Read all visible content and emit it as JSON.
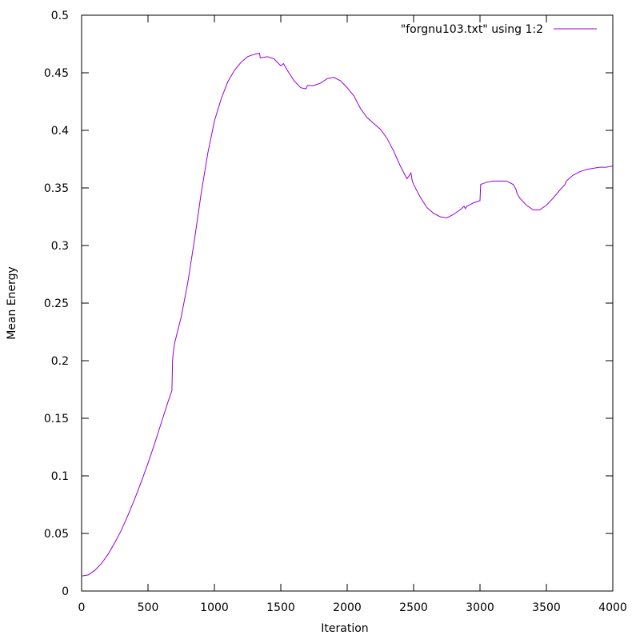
{
  "chart_data": {
    "type": "line",
    "title": "",
    "xlabel": "Iteration",
    "ylabel": "Mean Energy",
    "xlim": [
      0,
      4000
    ],
    "ylim": [
      0,
      0.5
    ],
    "x_ticks": [
      0,
      500,
      1000,
      1500,
      2000,
      2500,
      3000,
      3500,
      4000
    ],
    "x_tick_labels": [
      "0",
      "500",
      "1000",
      "1500",
      "2000",
      "2500",
      "3000",
      "3500",
      "4000"
    ],
    "y_ticks": [
      0,
      0.05,
      0.1,
      0.15,
      0.2,
      0.25,
      0.3,
      0.35,
      0.4,
      0.45,
      0.5
    ],
    "y_tick_labels": [
      "0",
      "0.05",
      "0.1",
      "0.15",
      "0.2",
      "0.25",
      "0.3",
      "0.35",
      "0.4",
      "0.45",
      "0.5"
    ],
    "grid": false,
    "legend_position": "top-right",
    "series": [
      {
        "name": "\"forgnu103.txt\" using 1:2",
        "color": "#9400d3",
        "x": [
          0,
          50,
          100,
          150,
          200,
          250,
          300,
          350,
          400,
          450,
          500,
          550,
          600,
          650,
          680,
          685,
          690,
          700,
          750,
          800,
          850,
          900,
          950,
          1000,
          1050,
          1100,
          1150,
          1200,
          1250,
          1300,
          1340,
          1345,
          1350,
          1400,
          1450,
          1500,
          1520,
          1530,
          1550,
          1600,
          1650,
          1690,
          1700,
          1750,
          1800,
          1850,
          1900,
          1950,
          2000,
          2050,
          2100,
          2150,
          2200,
          2250,
          2300,
          2350,
          2400,
          2450,
          2480,
          2490,
          2500,
          2550,
          2600,
          2650,
          2700,
          2750,
          2800,
          2850,
          2880,
          2890,
          2900,
          2950,
          3000,
          3005,
          3050,
          3100,
          3150,
          3200,
          3250,
          3270,
          3280,
          3300,
          3350,
          3400,
          3450,
          3500,
          3550,
          3600,
          3640,
          3650,
          3700,
          3750,
          3800,
          3850,
          3900,
          3950,
          4000
        ],
        "y": [
          0.013,
          0.014,
          0.018,
          0.024,
          0.032,
          0.042,
          0.053,
          0.066,
          0.08,
          0.095,
          0.111,
          0.128,
          0.146,
          0.164,
          0.174,
          0.2,
          0.207,
          0.215,
          0.238,
          0.268,
          0.305,
          0.345,
          0.38,
          0.408,
          0.427,
          0.442,
          0.452,
          0.459,
          0.464,
          0.466,
          0.467,
          0.463,
          0.463,
          0.464,
          0.462,
          0.456,
          0.458,
          0.456,
          0.452,
          0.443,
          0.437,
          0.436,
          0.439,
          0.439,
          0.441,
          0.445,
          0.446,
          0.443,
          0.437,
          0.43,
          0.419,
          0.411,
          0.406,
          0.401,
          0.393,
          0.382,
          0.369,
          0.358,
          0.363,
          0.356,
          0.353,
          0.342,
          0.333,
          0.328,
          0.325,
          0.324,
          0.327,
          0.331,
          0.334,
          0.332,
          0.334,
          0.337,
          0.339,
          0.353,
          0.355,
          0.356,
          0.356,
          0.356,
          0.353,
          0.349,
          0.345,
          0.341,
          0.335,
          0.331,
          0.331,
          0.335,
          0.341,
          0.348,
          0.353,
          0.356,
          0.361,
          0.364,
          0.366,
          0.367,
          0.368,
          0.368,
          0.369
        ]
      }
    ]
  }
}
